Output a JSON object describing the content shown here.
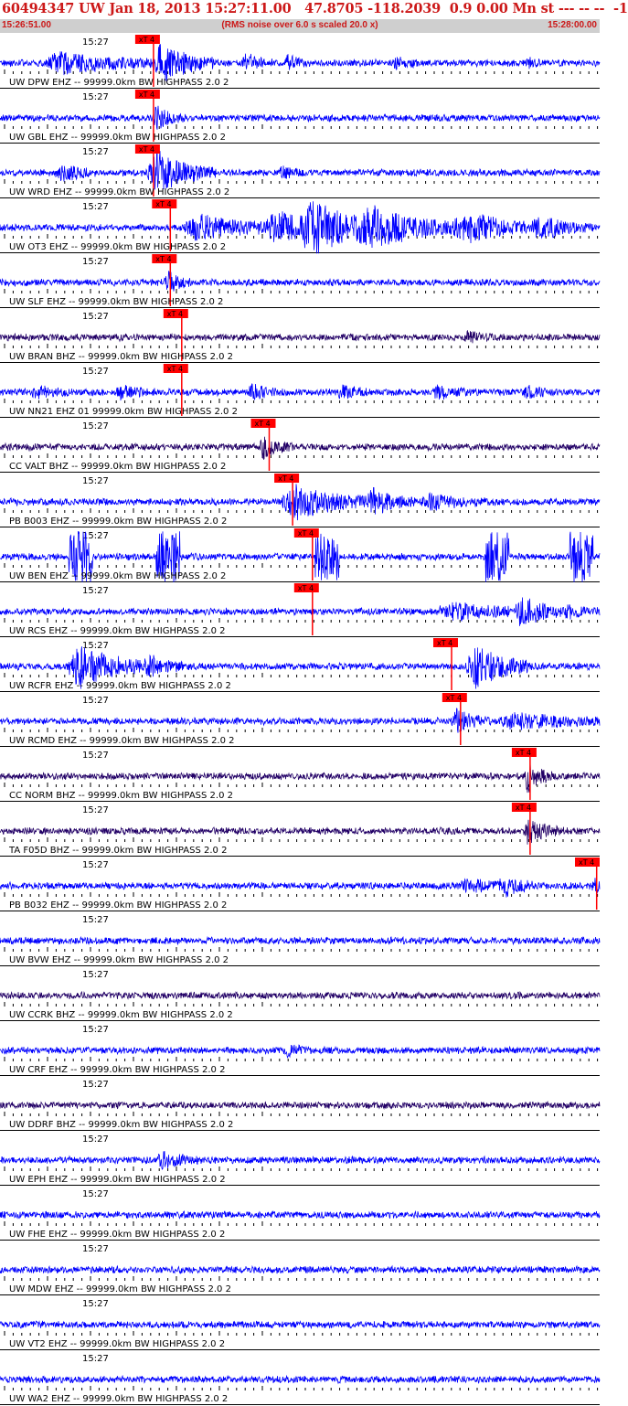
{
  "header": {
    "title": "60494347 UW Jan 18, 2013 15:27:11.00   47.8705 -118.2039  0.9 0.00 Mn st --- -- --  -1",
    "start_time": "15:26:51.00",
    "rms_note": "(RMS noise over 6.0 s scaled 20.0 x)",
    "end_time": "15:28:00.00"
  },
  "colors": {
    "waveform_blue": "#0000ff",
    "waveform_dark": "#220066",
    "pick_red": "#ff0000",
    "title_red": "#cc1818",
    "subbar_gray": "#cfcfcf"
  },
  "tick_label": "15:27",
  "pick_label": "xT 4",
  "traces": [
    {
      "label": "UW DPW EHZ -- 99999.0km BW  HIGHPASS  2.0  2",
      "color": "blue",
      "pick": 0.256,
      "bursts": [
        [
          0.1,
          0.22,
          1.1
        ],
        [
          0.27,
          0.09,
          2.4
        ],
        [
          0.41,
          0.05,
          1.0
        ],
        [
          0.48,
          0.04,
          0.8
        ],
        [
          0.66,
          0.04,
          0.6
        ],
        [
          0.88,
          0.03,
          0.5
        ]
      ]
    },
    {
      "label": "UW GBL EHZ -- 99999.0km BW  HIGHPASS  2.0  2",
      "color": "blue",
      "pick": 0.256,
      "bursts": [
        [
          0.26,
          0.05,
          1.4
        ]
      ]
    },
    {
      "label": "UW WRD EHZ -- 99999.0km BW  HIGHPASS  2.0  2",
      "color": "blue",
      "pick": 0.256,
      "bursts": [
        [
          0.1,
          0.06,
          1.0
        ],
        [
          0.26,
          0.1,
          2.6
        ],
        [
          0.47,
          0.04,
          0.7
        ]
      ]
    },
    {
      "label": "UW OT3 EHZ -- 99999.0km BW  HIGHPASS  2.0  2",
      "color": "blue",
      "pick": 0.284,
      "bursts": [
        [
          0.33,
          0.18,
          1.4
        ],
        [
          0.46,
          0.12,
          1.6
        ],
        [
          0.52,
          0.15,
          2.8
        ],
        [
          0.62,
          0.22,
          1.8
        ],
        [
          0.78,
          0.18,
          1.2
        ],
        [
          0.9,
          0.1,
          0.9
        ]
      ]
    },
    {
      "label": "UW SLF EHZ -- 99999.0km BW  HIGHPASS  2.0  2",
      "color": "blue",
      "pick": 0.284,
      "bursts": [
        [
          0.28,
          0.04,
          1.3
        ]
      ]
    },
    {
      "label": "UW BRAN BHZ -- 99999.0km BW  HIGHPASS  2.0  2",
      "color": "dark",
      "pick": 0.303,
      "bursts": [
        [
          0.78,
          0.05,
          0.5
        ]
      ]
    },
    {
      "label": "UW NN21 EHZ 01 99999.0km BW  HIGHPASS  2.0  2",
      "color": "blue",
      "pick": 0.303,
      "bursts": [
        [
          0.06,
          0.06,
          0.8
        ],
        [
          0.2,
          0.06,
          0.8
        ],
        [
          0.42,
          0.06,
          0.7
        ],
        [
          0.57,
          0.05,
          0.7
        ],
        [
          0.73,
          0.06,
          0.7
        ],
        [
          0.88,
          0.05,
          0.6
        ]
      ]
    },
    {
      "label": "CC VALT BHZ -- 99999.0km BW  HIGHPASS  2.0  2",
      "color": "dark",
      "pick": 0.449,
      "bursts": [
        [
          0.44,
          0.05,
          1.2
        ]
      ]
    },
    {
      "label": "PB B003 EHZ -- 99999.0km BW  HIGHPASS  2.0  2",
      "color": "blue",
      "pick": 0.488,
      "bursts": [
        [
          0.49,
          0.15,
          2.0
        ],
        [
          0.62,
          0.1,
          1.2
        ],
        [
          0.72,
          0.1,
          0.8
        ]
      ]
    },
    {
      "label": "UW BEN EHZ -- 99999.0km BW  HIGHPASS  2.0  2",
      "color": "blue",
      "pick": 0.521,
      "clips": [
        0.115,
        0.26,
        0.525,
        0.81,
        0.95
      ]
    },
    {
      "label": "UW RCS EHZ -- 99999.0km BW  HIGHPASS  2.0  2",
      "color": "blue",
      "pick": 0.521,
      "bursts": [
        [
          0.75,
          0.15,
          1.0
        ],
        [
          0.87,
          0.08,
          1.6
        ],
        [
          0.95,
          0.06,
          0.6
        ]
      ]
    },
    {
      "label": "UW RCFR EHZ -- 99999.0km BW  HIGHPASS  2.0  2",
      "color": "blue",
      "pick": 0.753,
      "bursts": [
        [
          0.13,
          0.13,
          2.6
        ],
        [
          0.25,
          0.08,
          0.8
        ],
        [
          0.79,
          0.1,
          2.8
        ]
      ]
    },
    {
      "label": "UW RCMD EHZ -- 99999.0km BW  HIGHPASS  2.0  2",
      "color": "blue",
      "pick": 0.768,
      "bursts": [
        [
          0.76,
          0.06,
          1.4
        ],
        [
          0.86,
          0.2,
          0.9
        ]
      ]
    },
    {
      "label": "CC NORM BHZ -- 99999.0km BW  HIGHPASS  2.0  2",
      "color": "dark",
      "pick": 0.884,
      "bursts": [
        [
          0.88,
          0.04,
          2.0
        ]
      ]
    },
    {
      "label": "TA F05D BHZ -- 99999.0km BW  HIGHPASS  2.0  2",
      "color": "dark",
      "pick": 0.884,
      "bursts": [
        [
          0.88,
          0.06,
          1.3
        ]
      ]
    },
    {
      "label": "PB B032 EHZ -- 99999.0km BW  HIGHPASS  2.0  2",
      "color": "blue",
      "pick": 0.995,
      "bursts": [
        [
          0.78,
          0.1,
          0.7
        ],
        [
          0.84,
          0.06,
          1.0
        ],
        [
          0.99,
          0.02,
          1.2
        ]
      ]
    },
    {
      "label": "UW BVW EHZ -- 99999.0km BW  HIGHPASS  2.0  2",
      "color": "blue"
    },
    {
      "label": "UW CCRK BHZ -- 99999.0km BW  HIGHPASS  2.0  2",
      "color": "dark"
    },
    {
      "label": "UW CRF EHZ -- 99999.0km BW  HIGHPASS  2.0  2",
      "color": "blue",
      "bursts": [
        [
          0.48,
          0.04,
          0.6
        ]
      ]
    },
    {
      "label": "UW DDRF BHZ -- 99999.0km BW  HIGHPASS  2.0  2",
      "color": "dark"
    },
    {
      "label": "UW EPH EHZ -- 99999.0km BW  HIGHPASS  2.0  2",
      "color": "blue",
      "bursts": [
        [
          0.27,
          0.06,
          1.0
        ]
      ]
    },
    {
      "label": "UW FHE EHZ -- 99999.0km BW  HIGHPASS  2.0  2",
      "color": "blue"
    },
    {
      "label": "UW MDW EHZ -- 99999.0km BW  HIGHPASS  2.0  2",
      "color": "blue"
    },
    {
      "label": "UW VT2 EHZ -- 99999.0km BW  HIGHPASS  2.0  2",
      "color": "blue"
    },
    {
      "label": "UW WA2 EHZ -- 99999.0km BW  HIGHPASS  2.0  2",
      "color": "blue"
    }
  ]
}
